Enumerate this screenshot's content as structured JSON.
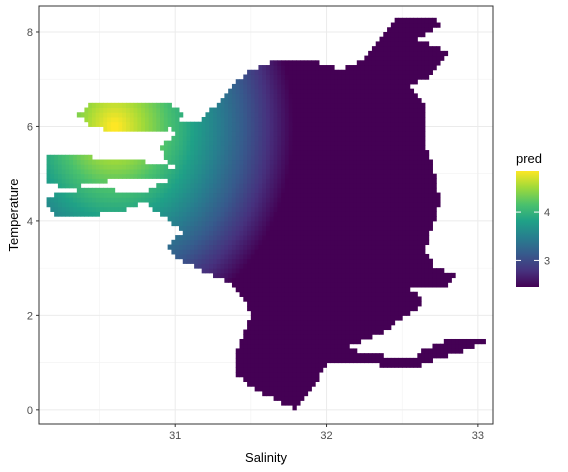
{
  "chart_data": {
    "type": "heatmap",
    "title": "",
    "xlabel": "Salinity",
    "ylabel": "Temperature",
    "xlim": [
      30.1,
      33.1
    ],
    "ylim": [
      -0.3,
      8.55
    ],
    "x_ticks": [
      {
        "value": 31,
        "label": "31"
      },
      {
        "value": 32,
        "label": "32"
      },
      {
        "value": 33,
        "label": "33"
      }
    ],
    "y_ticks": [
      {
        "value": 0,
        "label": "0"
      },
      {
        "value": 2,
        "label": "2"
      },
      {
        "value": 4,
        "label": "4"
      },
      {
        "value": 6,
        "label": "6"
      },
      {
        "value": 8,
        "label": "8"
      }
    ],
    "grid": true,
    "legend": {
      "title": "pred",
      "placement": "right",
      "colormap": "viridis",
      "range": [
        2.45,
        4.85
      ],
      "ticks": [
        {
          "value": 3,
          "label": "3"
        },
        {
          "value": 4,
          "label": "4"
        }
      ]
    },
    "fill_model": {
      "peak": {
        "salinity": 30.6,
        "temperature": 6.0,
        "value": 4.9
      },
      "falloff_per_unit_salinity": 1.3,
      "falloff_per_unit_temperature": 0.35,
      "note_min": 2.45
    },
    "regions": [
      {
        "name": "main-body",
        "polygon": [
          [
            31.15,
            6.05
          ],
          [
            31.25,
            6.4
          ],
          [
            31.35,
            6.8
          ],
          [
            31.5,
            7.2
          ],
          [
            31.7,
            7.45
          ],
          [
            31.9,
            7.4
          ],
          [
            32.1,
            7.2
          ],
          [
            32.25,
            7.45
          ],
          [
            32.35,
            7.9
          ],
          [
            32.45,
            8.3
          ],
          [
            32.7,
            8.35
          ],
          [
            32.75,
            8.15
          ],
          [
            32.6,
            7.85
          ],
          [
            32.8,
            7.6
          ],
          [
            32.7,
            7.1
          ],
          [
            32.55,
            6.9
          ],
          [
            32.65,
            6.4
          ],
          [
            32.65,
            5.6
          ],
          [
            32.72,
            4.95
          ],
          [
            32.75,
            4.4
          ],
          [
            32.7,
            3.9
          ],
          [
            32.65,
            3.4
          ],
          [
            32.72,
            3.0
          ],
          [
            32.85,
            2.85
          ],
          [
            32.8,
            2.6
          ],
          [
            32.55,
            2.55
          ],
          [
            32.65,
            2.3
          ],
          [
            32.55,
            2.05
          ],
          [
            32.35,
            1.6
          ],
          [
            32.1,
            1.3
          ],
          [
            32.3,
            1.2
          ],
          [
            32.55,
            1.05
          ],
          [
            32.65,
            1.3
          ],
          [
            32.8,
            1.5
          ],
          [
            33.05,
            1.45
          ],
          [
            32.95,
            1.3
          ],
          [
            32.75,
            1.1
          ],
          [
            32.55,
            0.85
          ],
          [
            32.35,
            0.95
          ],
          [
            32.15,
            1.05
          ],
          [
            32.0,
            0.95
          ],
          [
            31.9,
            0.45
          ],
          [
            31.8,
            0.0
          ],
          [
            31.7,
            0.15
          ],
          [
            31.5,
            0.5
          ],
          [
            31.4,
            0.75
          ],
          [
            31.4,
            1.2
          ],
          [
            31.45,
            1.6
          ],
          [
            31.5,
            2.0
          ],
          [
            31.45,
            2.4
          ],
          [
            31.35,
            2.7
          ],
          [
            31.15,
            3.0
          ],
          [
            31.0,
            3.2
          ],
          [
            30.95,
            3.5
          ],
          [
            31.05,
            3.75
          ],
          [
            30.9,
            4.15
          ],
          [
            30.75,
            4.5
          ],
          [
            30.9,
            4.8
          ],
          [
            31.1,
            5.0
          ],
          [
            30.95,
            5.2
          ],
          [
            30.9,
            5.6
          ],
          [
            31.0,
            5.8
          ],
          [
            30.95,
            6.0
          ],
          [
            31.05,
            6.1
          ]
        ]
      },
      {
        "name": "upper-left-lobe",
        "polygon": [
          [
            30.35,
            6.25
          ],
          [
            30.45,
            6.5
          ],
          [
            30.7,
            6.55
          ],
          [
            30.95,
            6.5
          ],
          [
            31.05,
            6.3
          ],
          [
            31.0,
            6.0
          ],
          [
            30.85,
            5.85
          ],
          [
            30.6,
            5.9
          ],
          [
            30.45,
            6.0
          ]
        ]
      },
      {
        "name": "middle-left-lobe",
        "polygon": [
          [
            30.15,
            5.4
          ],
          [
            30.45,
            5.35
          ],
          [
            30.8,
            5.25
          ],
          [
            31.1,
            5.05
          ],
          [
            31.15,
            4.95
          ],
          [
            30.9,
            4.85
          ],
          [
            30.55,
            4.85
          ],
          [
            30.3,
            4.7
          ],
          [
            30.15,
            4.8
          ]
        ]
      },
      {
        "name": "lower-left-lobe",
        "polygon": [
          [
            30.15,
            4.4
          ],
          [
            30.2,
            4.6
          ],
          [
            30.5,
            4.7
          ],
          [
            30.8,
            4.55
          ],
          [
            30.75,
            4.3
          ],
          [
            30.5,
            4.15
          ],
          [
            30.2,
            4.1
          ]
        ]
      }
    ]
  }
}
